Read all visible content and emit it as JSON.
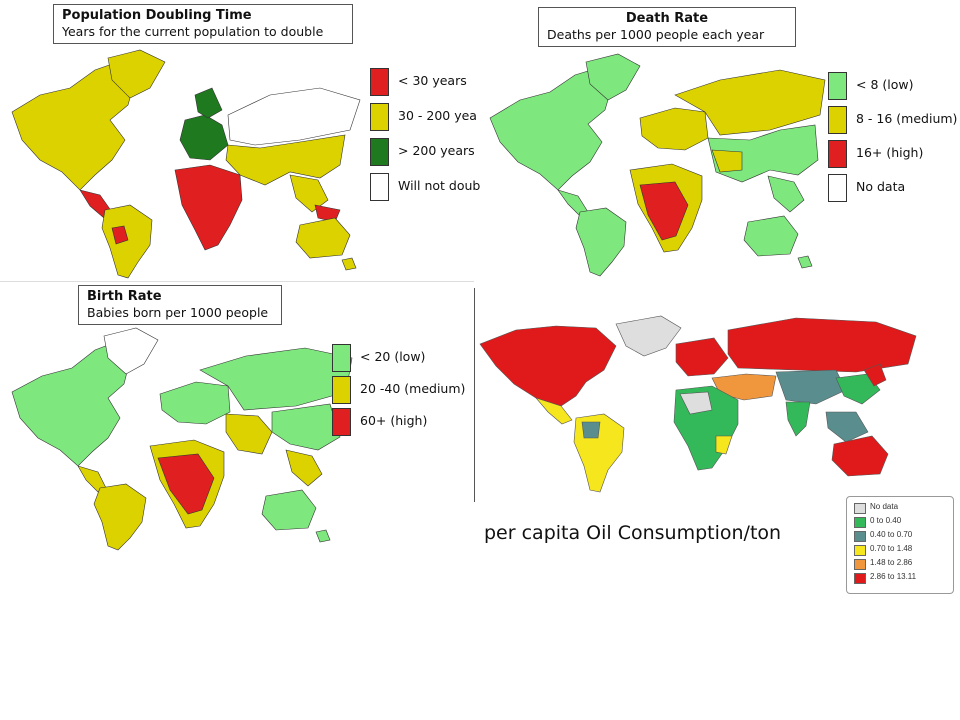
{
  "colors": {
    "red": "#e02020",
    "yellow": "#dcd200",
    "green_dark": "#1f7a1f",
    "white": "#ffffff",
    "light_green": "#7ee87e",
    "oil_gray": "#dedede",
    "oil_green": "#33b85a",
    "oil_teal": "#5a8e8e",
    "oil_yellow": "#f5e61e",
    "oil_orange": "#f0963c",
    "oil_red": "#e01a1a"
  },
  "maps": [
    {
      "id": "population-doubling",
      "title": "Population Doubling Time",
      "subtitle": "Years for the current population to double",
      "legend": [
        {
          "label": "< 30 years",
          "color": "#e02020"
        },
        {
          "label": "30 - 200 yea",
          "color": "#dcd200"
        },
        {
          "label": "> 200 years",
          "color": "#1f7a1f"
        },
        {
          "label": "Will not doub",
          "color": "#ffffff"
        }
      ]
    },
    {
      "id": "death-rate",
      "title": "Death Rate",
      "subtitle": "Deaths per 1000 people each year",
      "legend": [
        {
          "label": "< 8 (low)",
          "color": "#7ee87e"
        },
        {
          "label": "8 - 16 (medium)",
          "color": "#dcd200"
        },
        {
          "label": "16+ (high)",
          "color": "#e02020"
        },
        {
          "label": "No data",
          "color": "#ffffff"
        }
      ]
    },
    {
      "id": "birth-rate",
      "title": "Birth Rate",
      "subtitle": "Babies born per 1000 people",
      "legend": [
        {
          "label": "< 20 (low)",
          "color": "#7ee87e"
        },
        {
          "label": "20 -40 (medium)",
          "color": "#dcd200"
        },
        {
          "label": "60+ (high)",
          "color": "#e02020"
        }
      ]
    },
    {
      "id": "oil-consumption",
      "caption": "per capita Oil Consumption/ton",
      "legend": [
        {
          "label": "No data",
          "color": "#dedede"
        },
        {
          "label": "0 to 0.40",
          "color": "#33b85a"
        },
        {
          "label": "0.40 to 0.70",
          "color": "#5a8e8e"
        },
        {
          "label": "0.70 to 1.48",
          "color": "#f5e61e"
        },
        {
          "label": "1.48 to 2.86",
          "color": "#f0963c"
        },
        {
          "label": "2.86 to 13.11",
          "color": "#e01a1a"
        }
      ]
    }
  ]
}
